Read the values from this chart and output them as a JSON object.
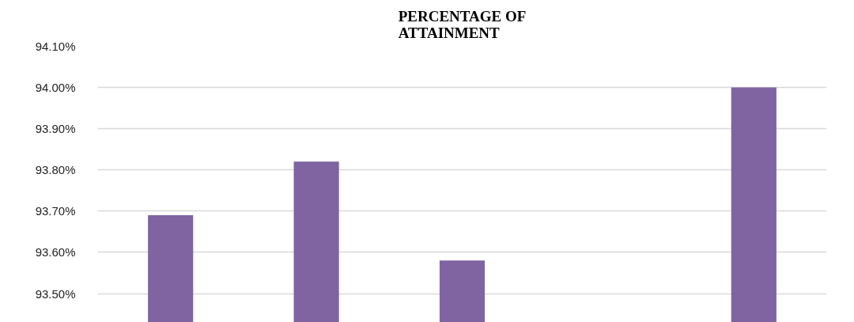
{
  "chart_data": {
    "type": "bar",
    "title": "PERCENTAGE OF ATTAINMENT",
    "categories": [
      null,
      null,
      null,
      null,
      null
    ],
    "values": [
      93.69,
      93.82,
      93.58,
      null,
      94.0
    ],
    "color": "#8064a2",
    "ylim": [
      93.43,
      94.1
    ],
    "yticks": [
      {
        "value": 93.5,
        "label": "93.50%"
      },
      {
        "value": 93.6,
        "label": "93.60%"
      },
      {
        "value": 93.7,
        "label": "93.70%"
      },
      {
        "value": 93.8,
        "label": "93.80%"
      },
      {
        "value": 93.9,
        "label": "93.90%"
      },
      {
        "value": 94.0,
        "label": "94.00%"
      },
      {
        "value": 94.1,
        "label": "94.10%"
      }
    ],
    "grid": "y",
    "tick_labels": "y"
  }
}
